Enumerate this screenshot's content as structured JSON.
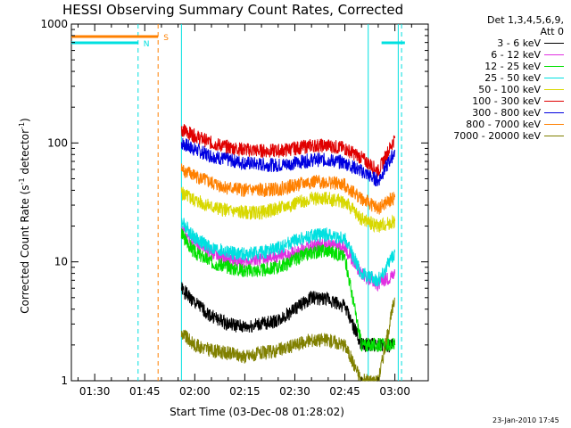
{
  "title": "HESSI Observing Summary Count Rates, Corrected",
  "timestamp": "23-Jan-2010 17:45",
  "legend": {
    "header_line1": "Det 1,3,4,5,6,9,",
    "header_line2": "Att 0",
    "entries": [
      {
        "label": "3 - 6 keV",
        "color": "#000000"
      },
      {
        "label": "6 - 12 keV",
        "color": "#e030e0"
      },
      {
        "label": "12 - 25 keV",
        "color": "#00e000"
      },
      {
        "label": "25 - 50 keV",
        "color": "#00e0e0"
      },
      {
        "label": "50 - 100 keV",
        "color": "#d8d800"
      },
      {
        "label": "100 - 300 keV",
        "color": "#e00000"
      },
      {
        "label": "300 - 800 keV",
        "color": "#0000e0"
      },
      {
        "label": "800 - 7000 keV",
        "color": "#ff8000"
      },
      {
        "label": "7000 - 20000 keV",
        "color": "#808000"
      }
    ]
  },
  "chart_data": {
    "type": "line",
    "title": "HESSI Observing Summary Count Rates, Corrected",
    "xlabel": "Start Time (03-Dec-08 01:28:02)",
    "ylabel": "Corrected Count Rate (s",
    "ylabel_sup1": "-1",
    "ylabel_mid": " detector",
    "ylabel_sup2": "-1",
    "ylabel_end": ")",
    "y_scale": "log",
    "xlim": [
      "01:23",
      "03:10"
    ],
    "ylim": [
      1,
      1000
    ],
    "x_ticks": [
      "01:30",
      "01:45",
      "02:00",
      "02:15",
      "02:30",
      "02:45",
      "03:00"
    ],
    "y_ticks": [
      "1",
      "10",
      "100",
      "1000"
    ],
    "grid": false,
    "legend_position": "right",
    "data_start": "01:56",
    "data_end": "03:01",
    "series": [
      {
        "name": "3 - 6 keV",
        "color": "#000000",
        "x": [
          "01:56",
          "02:00",
          "02:05",
          "02:10",
          "02:15",
          "02:20",
          "02:25",
          "02:30",
          "02:35",
          "02:40",
          "02:45",
          "02:50",
          "02:55",
          "03:00"
        ],
        "y": [
          6,
          4.5,
          3.5,
          3,
          2.8,
          3,
          3.2,
          4,
          5,
          4.8,
          4.2,
          2,
          2,
          2
        ]
      },
      {
        "name": "6 - 12 keV",
        "color": "#e030e0",
        "x": [
          "01:56",
          "02:00",
          "02:05",
          "02:10",
          "02:15",
          "02:20",
          "02:25",
          "02:30",
          "02:35",
          "02:40",
          "02:45",
          "02:50",
          "02:55",
          "03:00"
        ],
        "y": [
          19,
          15,
          12,
          10.5,
          10,
          10.5,
          11,
          12,
          13.5,
          14,
          13,
          8,
          6.5,
          8
        ]
      },
      {
        "name": "12 - 25 keV",
        "color": "#00e000",
        "x": [
          "01:56",
          "02:00",
          "02:05",
          "02:10",
          "02:15",
          "02:20",
          "02:25",
          "02:30",
          "02:35",
          "02:40",
          "02:45",
          "02:50",
          "02:55",
          "03:00"
        ],
        "y": [
          17,
          12,
          10,
          9,
          8.5,
          8.5,
          9,
          10.5,
          12,
          12.5,
          11,
          2,
          2,
          2
        ]
      },
      {
        "name": "25 - 50 keV",
        "color": "#00e0e0",
        "x": [
          "01:56",
          "02:00",
          "02:05",
          "02:10",
          "02:15",
          "02:20",
          "02:25",
          "02:30",
          "02:35",
          "02:40",
          "02:45",
          "02:50",
          "02:55",
          "03:00"
        ],
        "y": [
          22,
          16,
          13,
          12,
          11.5,
          12,
          13,
          15,
          16.5,
          17,
          15.5,
          8,
          7,
          12
        ]
      },
      {
        "name": "50 - 100 keV",
        "color": "#d8d800",
        "x": [
          "01:56",
          "02:00",
          "02:05",
          "02:10",
          "02:15",
          "02:20",
          "02:25",
          "02:30",
          "02:35",
          "02:40",
          "02:45",
          "02:50",
          "02:55",
          "03:00"
        ],
        "y": [
          38,
          33,
          29,
          27,
          26,
          26,
          28,
          31,
          34,
          34,
          32,
          23,
          20,
          22
        ]
      },
      {
        "name": "100 - 300 keV",
        "color": "#e00000",
        "x": [
          "01:56",
          "02:00",
          "02:05",
          "02:10",
          "02:15",
          "02:20",
          "02:25",
          "02:30",
          "02:35",
          "02:40",
          "02:45",
          "02:50",
          "02:55",
          "03:00"
        ],
        "y": [
          130,
          115,
          100,
          92,
          88,
          86,
          86,
          90,
          95,
          95,
          90,
          75,
          58,
          110
        ]
      },
      {
        "name": "300 - 800 keV",
        "color": "#0000e0",
        "x": [
          "01:56",
          "02:00",
          "02:05",
          "02:10",
          "02:15",
          "02:20",
          "02:25",
          "02:30",
          "02:35",
          "02:40",
          "02:45",
          "02:50",
          "02:55",
          "03:00"
        ],
        "y": [
          100,
          88,
          78,
          72,
          68,
          66,
          65,
          68,
          72,
          72,
          68,
          58,
          48,
          85
        ]
      },
      {
        "name": "800 - 7000 keV",
        "color": "#ff8000",
        "x": [
          "01:56",
          "02:00",
          "02:05",
          "02:10",
          "02:15",
          "02:20",
          "02:25",
          "02:30",
          "02:35",
          "02:40",
          "02:45",
          "02:50",
          "02:55",
          "03:00"
        ],
        "y": [
          60,
          53,
          46,
          42,
          40,
          40,
          41,
          44,
          47,
          47,
          44,
          34,
          28,
          35
        ]
      },
      {
        "name": "7000 - 20000 keV",
        "color": "#808000",
        "x": [
          "01:56",
          "02:00",
          "02:05",
          "02:10",
          "02:15",
          "02:20",
          "02:25",
          "02:30",
          "02:35",
          "02:40",
          "02:45",
          "02:50",
          "02:55",
          "03:00"
        ],
        "y": [
          2.5,
          2,
          1.8,
          1.7,
          1.6,
          1.7,
          1.8,
          2,
          2.2,
          2.2,
          2,
          1,
          1,
          5
        ]
      }
    ],
    "annotations": [
      {
        "label": "N",
        "color": "#00e0e0",
        "intervals": [
          [
            "01:23",
            "01:43"
          ],
          [
            "02:56",
            "03:03"
          ]
        ]
      },
      {
        "label": "S",
        "color": "#ff8000",
        "intervals": [
          [
            "01:23",
            "01:49"
          ]
        ]
      }
    ],
    "vertical_markers": [
      {
        "time": "01:43",
        "color": "#00e0e0",
        "style": "dashed"
      },
      {
        "time": "01:49",
        "color": "#ff8000",
        "style": "dashed"
      },
      {
        "time": "03:02",
        "color": "#00e0e0",
        "style": "dashed"
      },
      {
        "time": "01:56",
        "color": "#00e0e0",
        "style": "solid"
      },
      {
        "time": "02:52",
        "color": "#00e0e0",
        "style": "solid"
      },
      {
        "time": "03:01",
        "color": "#00e0e0",
        "style": "solid"
      }
    ]
  }
}
